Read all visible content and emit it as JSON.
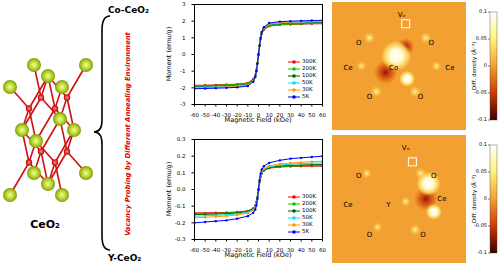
{
  "chart_data": [
    {
      "type": "line",
      "x_label": "Magnetic Field (kOe)",
      "y_label": "Moment (emu/g)",
      "x": [
        -60,
        -50,
        -40,
        -30,
        -20,
        -10,
        -5,
        -3,
        -2,
        -1,
        0,
        1,
        2,
        3,
        5,
        10,
        20,
        30,
        40,
        50,
        60
      ],
      "xlim": [
        -60,
        60
      ],
      "xticks": [
        -60,
        -50,
        -40,
        -30,
        -20,
        -10,
        0,
        10,
        20,
        30,
        40,
        50,
        60
      ],
      "ylim": [
        -3,
        3
      ],
      "yticks": [
        -3,
        -2,
        -1,
        0,
        1,
        2,
        3
      ],
      "legend": "lower right",
      "marker": "circle",
      "series": [
        {
          "name": "300K",
          "color": "#ff0000",
          "values": [
            -1.85,
            -1.84,
            -1.82,
            -1.8,
            -1.78,
            -1.7,
            -1.48,
            -1.22,
            -0.91,
            -0.5,
            0,
            0.5,
            0.91,
            1.22,
            1.48,
            1.7,
            1.78,
            1.8,
            1.82,
            1.84,
            1.85
          ]
        },
        {
          "name": "200K",
          "color": "#00cc00",
          "values": [
            -1.88,
            -1.87,
            -1.85,
            -1.83,
            -1.8,
            -1.73,
            -1.5,
            -1.24,
            -0.92,
            -0.51,
            0,
            0.51,
            0.92,
            1.24,
            1.5,
            1.73,
            1.8,
            1.83,
            1.85,
            1.87,
            1.88
          ]
        },
        {
          "name": "100K",
          "color": "#006400",
          "values": [
            -1.93,
            -1.92,
            -1.9,
            -1.88,
            -1.85,
            -1.78,
            -1.54,
            -1.27,
            -0.95,
            -0.52,
            0,
            0.52,
            0.95,
            1.27,
            1.54,
            1.78,
            1.85,
            1.88,
            1.9,
            1.92,
            1.93
          ]
        },
        {
          "name": "50K",
          "color": "#00e5ee",
          "values": [
            -1.97,
            -1.96,
            -1.94,
            -1.92,
            -1.89,
            -1.81,
            -1.58,
            -1.3,
            -0.97,
            -0.53,
            0,
            0.53,
            0.97,
            1.3,
            1.58,
            1.81,
            1.89,
            1.92,
            1.94,
            1.96,
            1.97
          ]
        },
        {
          "name": "30K",
          "color": "#ff9900",
          "values": [
            -2.0,
            -1.99,
            -1.97,
            -1.95,
            -1.92,
            -1.84,
            -1.6,
            -1.32,
            -0.98,
            -0.54,
            0,
            0.54,
            0.98,
            1.32,
            1.6,
            1.84,
            1.92,
            1.95,
            1.97,
            1.99,
            2.0
          ]
        },
        {
          "name": "5K",
          "color": "#0000ff",
          "values": [
            -2.05,
            -2.04,
            -2.02,
            -2.0,
            -1.97,
            -1.89,
            -1.64,
            -1.35,
            -1.0,
            -0.55,
            0,
            0.55,
            1.0,
            1.35,
            1.64,
            1.89,
            1.97,
            2.0,
            2.02,
            2.04,
            2.05
          ]
        }
      ]
    },
    {
      "type": "line",
      "x_label": "Magnetic Field (kOe)",
      "y_label": "Moment (emu/g)",
      "x": [
        -60,
        -50,
        -40,
        -30,
        -20,
        -10,
        -5,
        -3,
        -2,
        -1,
        0,
        1,
        2,
        3,
        5,
        10,
        20,
        30,
        40,
        50,
        60
      ],
      "xlim": [
        -60,
        60
      ],
      "xticks": [
        -60,
        -50,
        -40,
        -30,
        -20,
        -10,
        0,
        10,
        20,
        30,
        40,
        50,
        60
      ],
      "ylim": [
        -0.3,
        0.3
      ],
      "yticks": [
        -0.3,
        -0.2,
        -0.1,
        {
          "value": 0,
          "label": "0.0"
        },
        0.1,
        0.2,
        0.3
      ],
      "legend": "lower right",
      "marker": "circle",
      "series": [
        {
          "name": "300K",
          "color": "#ff0000",
          "values": [
            -0.14,
            -0.14,
            -0.139,
            -0.138,
            -0.135,
            -0.128,
            -0.113,
            -0.096,
            -0.075,
            -0.044,
            0,
            0.044,
            0.075,
            0.096,
            0.113,
            0.128,
            0.135,
            0.138,
            0.139,
            0.14,
            0.14
          ]
        },
        {
          "name": "200K",
          "color": "#00cc00",
          "values": [
            -0.145,
            -0.144,
            -0.143,
            -0.141,
            -0.138,
            -0.13,
            -0.115,
            -0.098,
            -0.077,
            -0.045,
            0,
            0.045,
            0.077,
            0.098,
            0.115,
            0.13,
            0.138,
            0.141,
            0.143,
            0.144,
            0.145
          ]
        },
        {
          "name": "100K",
          "color": "#006400",
          "values": [
            -0.15,
            -0.149,
            -0.147,
            -0.145,
            -0.141,
            -0.132,
            -0.117,
            -0.1,
            -0.079,
            -0.046,
            0,
            0.046,
            0.079,
            0.1,
            0.117,
            0.132,
            0.141,
            0.145,
            0.147,
            0.149,
            0.15
          ]
        },
        {
          "name": "50K",
          "color": "#00e5ee",
          "values": [
            -0.16,
            -0.158,
            -0.155,
            -0.152,
            -0.147,
            -0.137,
            -0.121,
            -0.104,
            -0.082,
            -0.048,
            0,
            0.048,
            0.082,
            0.104,
            0.121,
            0.137,
            0.147,
            0.152,
            0.155,
            0.158,
            0.16
          ]
        },
        {
          "name": "30K",
          "color": "#ff9900",
          "values": [
            -0.17,
            -0.167,
            -0.163,
            -0.159,
            -0.153,
            -0.142,
            -0.125,
            -0.108,
            -0.085,
            -0.05,
            0,
            0.05,
            0.085,
            0.108,
            0.125,
            0.142,
            0.153,
            0.159,
            0.163,
            0.167,
            0.17
          ]
        },
        {
          "name": "5K",
          "color": "#0000ff",
          "values": [
            -0.2,
            -0.195,
            -0.19,
            -0.185,
            -0.175,
            -0.16,
            -0.14,
            -0.12,
            -0.095,
            -0.055,
            0,
            0.055,
            0.095,
            0.12,
            0.14,
            0.16,
            0.175,
            0.185,
            0.19,
            0.195,
            0.2
          ]
        }
      ]
    }
  ],
  "figure": {
    "structure_label": "CeO₂",
    "brace_labels": [
      "Co-CeO₂",
      "Y-CeO₂"
    ],
    "annotation": "Vacancy Probing by Different Annealing Environment",
    "maps": [
      {
        "labels": [
          "Vₒ",
          "O",
          "O",
          "Ce",
          "Co",
          "Ce",
          "O",
          "O"
        ],
        "colorbar": {
          "label": "Diff. density (Å⁻³)",
          "range": [
            -0.1,
            0.1
          ],
          "ticks": [
            0.1,
            0.05,
            0,
            -0.05,
            -0.1
          ]
        }
      },
      {
        "labels": [
          "Vₒ",
          "O",
          "O",
          "Ce",
          "Y",
          "Ce",
          "O",
          "O"
        ],
        "colorbar": {
          "label": "Diff. density (Å⁻³)",
          "range": [
            -0.1,
            0.1
          ],
          "ticks": [
            0.1,
            0.05,
            0,
            -0.05,
            -0.1
          ]
        }
      }
    ]
  }
}
